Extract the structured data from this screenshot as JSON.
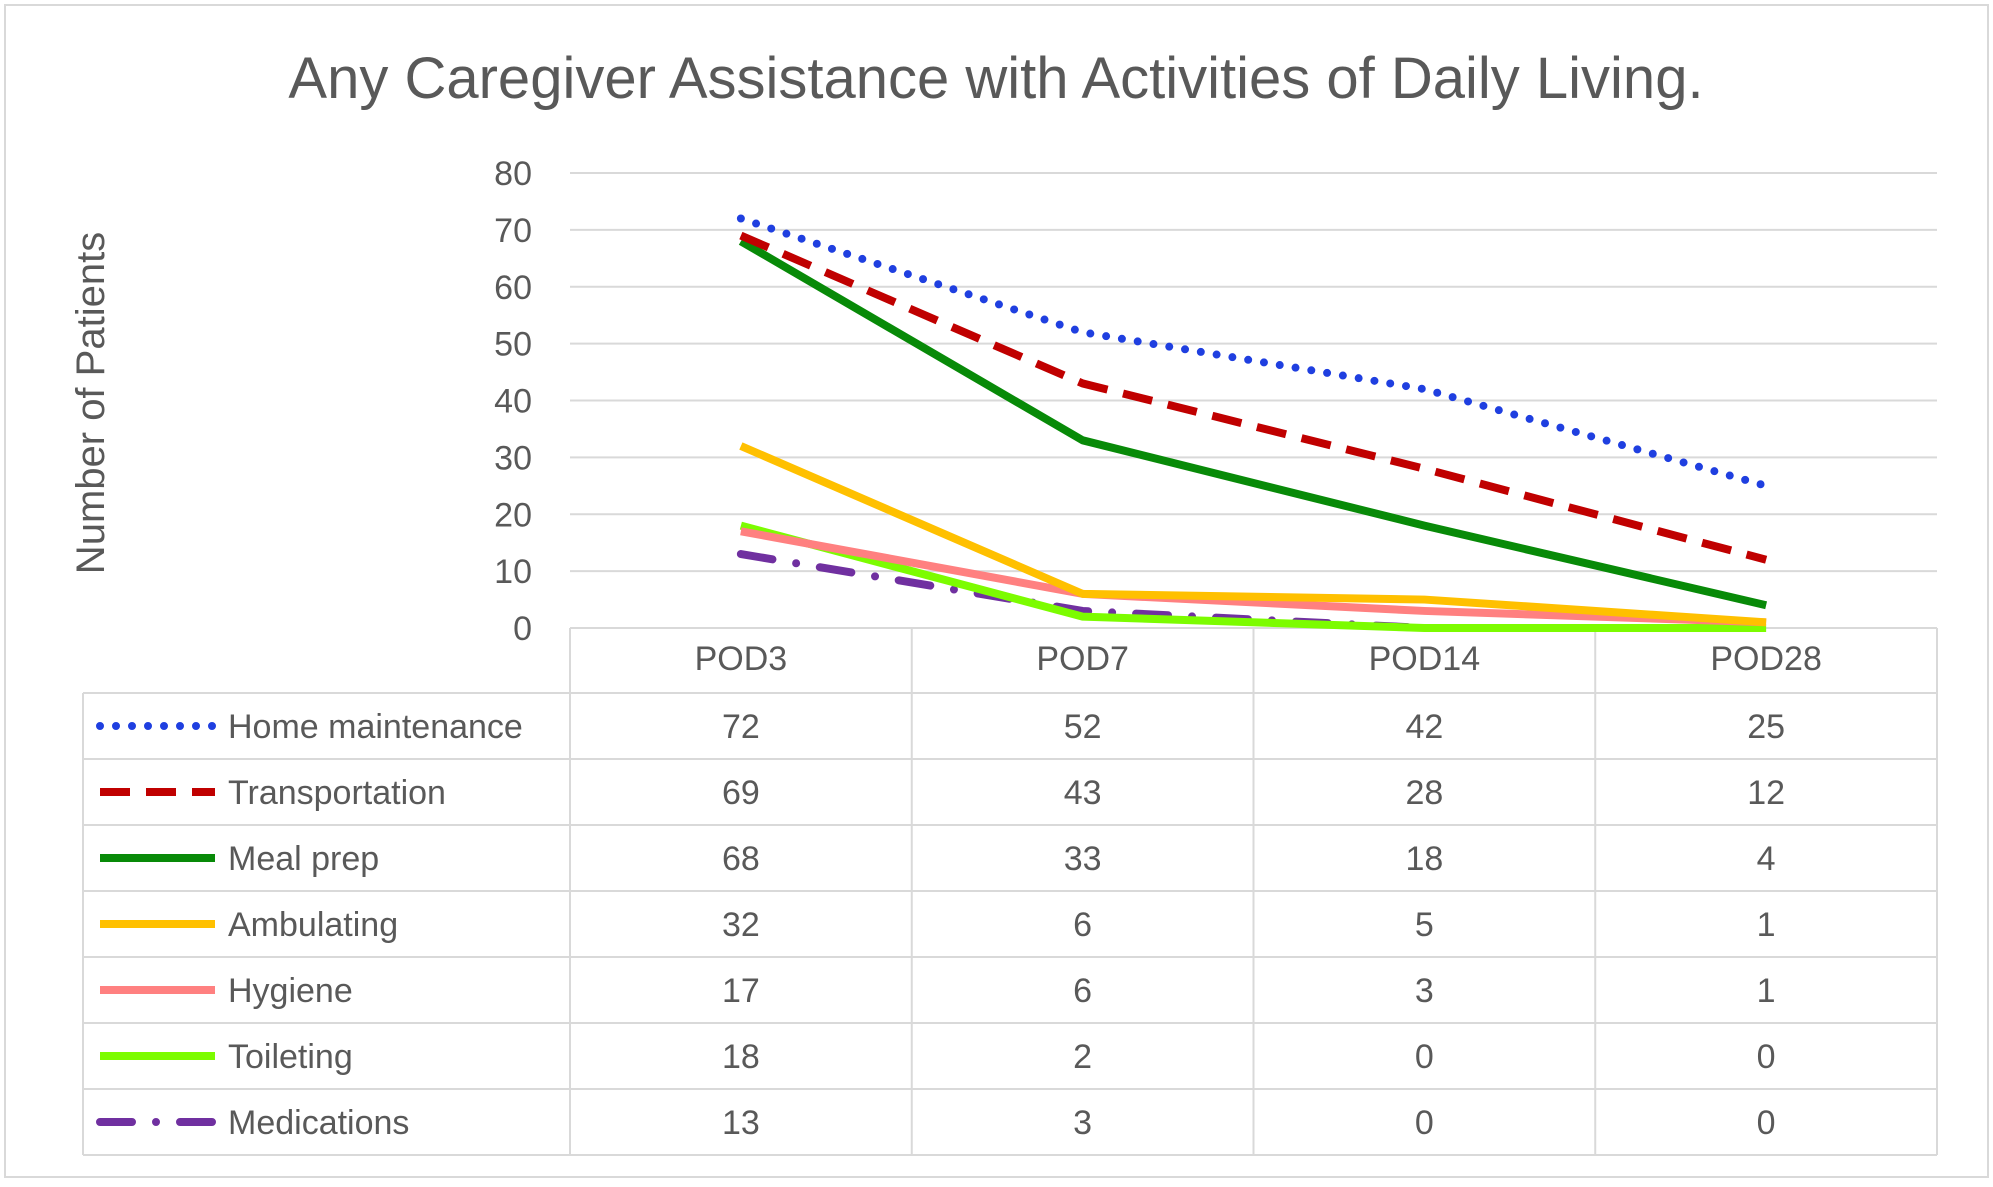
{
  "chart_data": {
    "type": "line",
    "title": "Any Caregiver Assistance with Activities of Daily Living.",
    "xlabel": "",
    "ylabel": "Number of Patients",
    "ylim": [
      0,
      80
    ],
    "yticks": [
      "0",
      "10",
      "20",
      "30",
      "40",
      "50",
      "60",
      "70",
      "80"
    ],
    "categories": [
      "POD3",
      "POD7",
      "POD14",
      "POD28"
    ],
    "grid": true,
    "legend_position": "data table below chart",
    "series": [
      {
        "name": "Home maintenance",
        "values": [
          72,
          52,
          42,
          25
        ],
        "color": "#1F3FE0",
        "style": "dotted"
      },
      {
        "name": "Transportation",
        "values": [
          69,
          43,
          28,
          12
        ],
        "color": "#C00000",
        "style": "dashed"
      },
      {
        "name": "Meal prep",
        "values": [
          68,
          33,
          18,
          4
        ],
        "color": "#088A08",
        "style": "solid"
      },
      {
        "name": "Ambulating",
        "values": [
          32,
          6,
          5,
          1
        ],
        "color": "#FFC000",
        "style": "solid"
      },
      {
        "name": "Hygiene",
        "values": [
          17,
          6,
          3,
          1
        ],
        "color": "#FF8080",
        "style": "solid"
      },
      {
        "name": "Toileting",
        "values": [
          18,
          2,
          0,
          0
        ],
        "color": "#7CFC00",
        "style": "solid"
      },
      {
        "name": "Medications",
        "values": [
          13,
          3,
          0,
          0
        ],
        "color": "#7030A0",
        "style": "dash-dot"
      }
    ]
  }
}
